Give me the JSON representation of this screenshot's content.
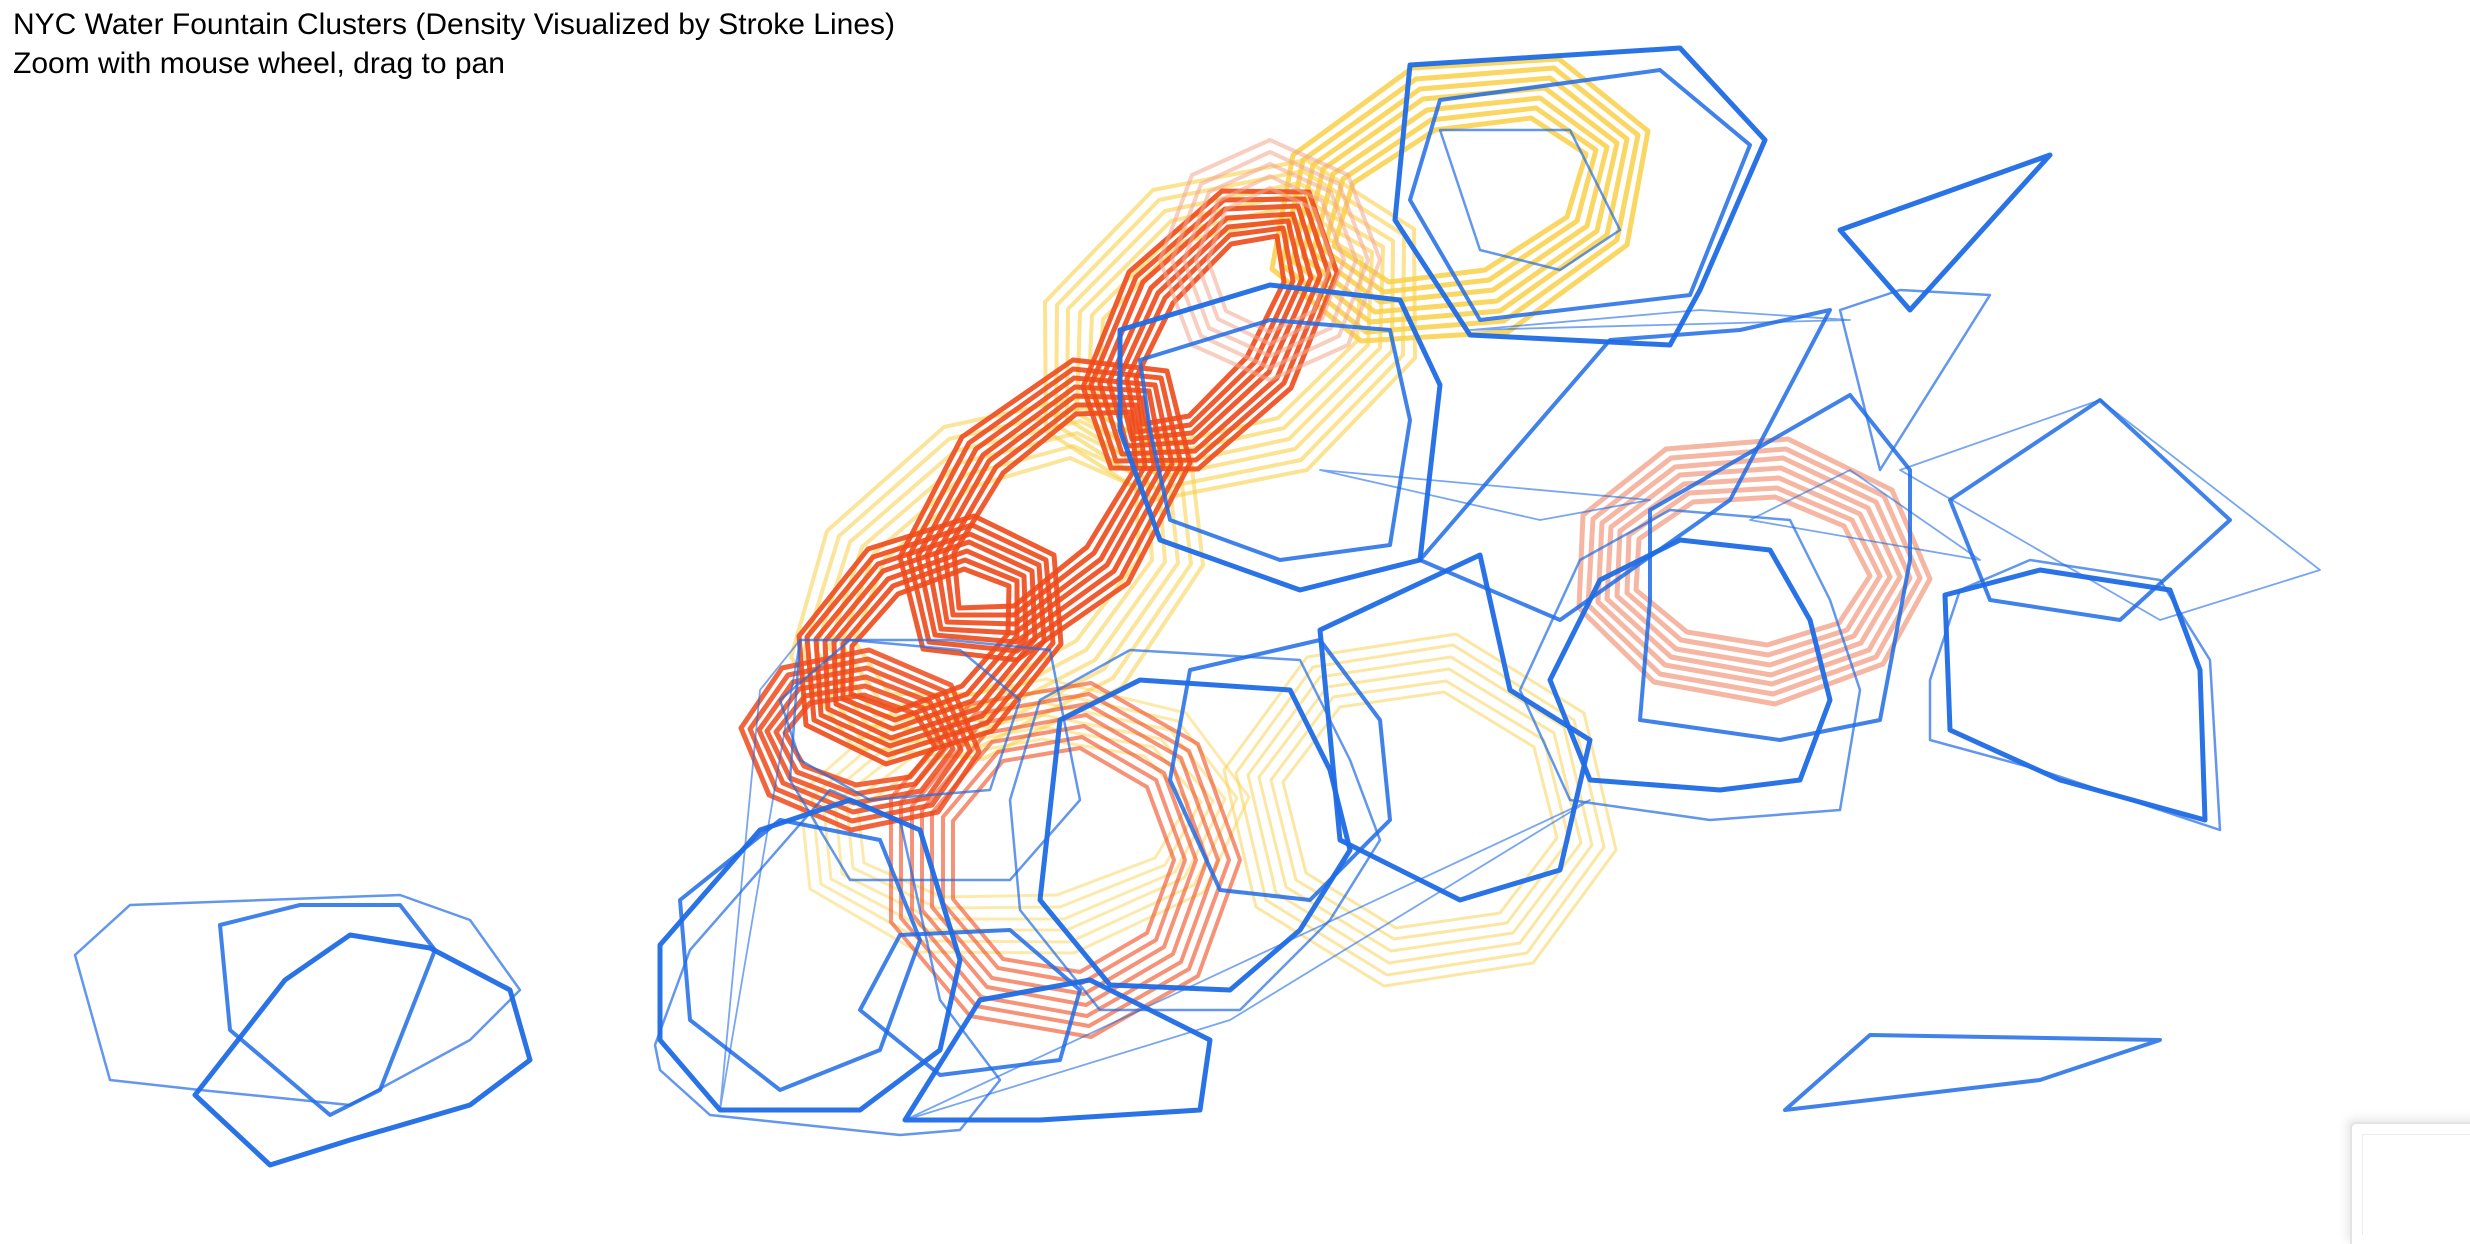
{
  "header": {
    "title": "NYC Water Fountain Clusters (Density Visualized by Stroke Lines)",
    "instructions": "Zoom with mouse wheel, drag to pan"
  },
  "palette": {
    "low_density": "#1f6be6",
    "medium_density": "#f8d047",
    "high_density_light": "#f2a58c",
    "high_density": "#ee4a1c"
  }
}
